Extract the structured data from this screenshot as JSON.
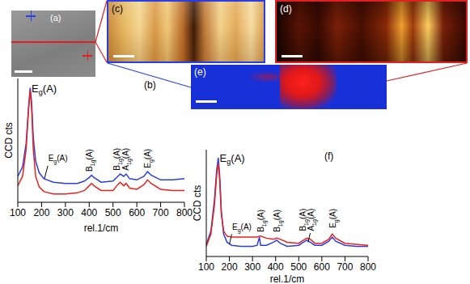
{
  "panels": {
    "a": "(a)",
    "c": "(c)",
    "d": "(d)",
    "e": "(e)"
  },
  "chart_data": [
    {
      "type": "line",
      "title": "(b)",
      "x_label": "rel.1/cm",
      "y_label": "CCD cts",
      "xlim": [
        100,
        800
      ],
      "xticks": [
        100,
        200,
        300,
        400,
        500,
        600,
        700,
        800
      ],
      "ylim": [
        0,
        105
      ],
      "tick_labels": "x",
      "x": [
        100,
        120,
        135,
        145,
        152,
        158,
        165,
        175,
        190,
        210,
        250,
        300,
        350,
        380,
        400,
        410,
        420,
        450,
        500,
        520,
        530,
        545,
        555,
        570,
        600,
        630,
        645,
        660,
        700,
        750,
        800
      ],
      "series": [
        {
          "color": "#2a3ee8",
          "values": [
            22,
            30,
            50,
            80,
            97,
            85,
            55,
            35,
            25,
            20,
            17,
            16,
            16,
            18,
            21,
            23,
            21,
            17,
            18,
            22,
            24,
            22,
            24,
            20,
            19,
            22,
            26,
            23,
            19,
            19,
            20
          ]
        },
        {
          "color": "#e8221c",
          "values": [
            14,
            22,
            45,
            78,
            95,
            80,
            45,
            22,
            13,
            9,
            7,
            7,
            8,
            10,
            14,
            16,
            14,
            10,
            10,
            15,
            17,
            14,
            16,
            12,
            11,
            15,
            19,
            16,
            11,
            10,
            10
          ]
        }
      ],
      "annotations": [
        {
          "text": "E",
          "sub": "g",
          "tail": "(A)",
          "x": 158,
          "y": 93
        },
        {
          "text": "E",
          "sub": "g",
          "tail": "(A)",
          "x": 228,
          "y": 35,
          "leader": [
            [
              212,
              20
            ],
            [
              226,
              31
            ]
          ]
        },
        {
          "text": "B",
          "sub": "1g",
          "tail": "(A)",
          "x": 400,
          "y": 26,
          "orientation": "vertical"
        },
        {
          "text": "B",
          "sub": "1g",
          "tail": "(A)",
          "x": 515,
          "y": 27,
          "orientation": "vertical"
        },
        {
          "text": "A",
          "sub": "1g",
          "tail": "(A)",
          "x": 553,
          "y": 27,
          "orientation": "vertical"
        },
        {
          "text": "E",
          "sub": "g",
          "tail": "(A)",
          "x": 645,
          "y": 29,
          "orientation": "vertical"
        }
      ]
    },
    {
      "type": "line",
      "title": "(f)",
      "x_label": "rel.1/cm",
      "y_label": "CCD cts",
      "xlim": [
        100,
        800
      ],
      "xticks": [
        100,
        200,
        300,
        400,
        500,
        600,
        700,
        800
      ],
      "ylim": [
        0,
        105
      ],
      "tick_labels": "x",
      "x": [
        100,
        120,
        135,
        145,
        152,
        158,
        165,
        175,
        190,
        210,
        250,
        300,
        320,
        330,
        335,
        360,
        390,
        405,
        420,
        450,
        500,
        520,
        535,
        550,
        570,
        600,
        630,
        645,
        660,
        700,
        750,
        800
      ],
      "series": [
        {
          "color": "#2a3ee8",
          "values": [
            12,
            25,
            55,
            85,
            97,
            80,
            45,
            22,
            14,
            11,
            10,
            10,
            11,
            19,
            11,
            11,
            14,
            16,
            13,
            10,
            11,
            14,
            16,
            14,
            11,
            11,
            15,
            19,
            15,
            11,
            10,
            10
          ]
        },
        {
          "color": "#e8221c",
          "values": [
            10,
            22,
            50,
            80,
            92,
            75,
            42,
            25,
            20,
            19,
            19,
            19,
            19,
            20,
            20,
            18,
            17,
            18,
            17,
            14,
            13,
            16,
            18,
            17,
            13,
            13,
            17,
            22,
            18,
            13,
            12,
            11
          ]
        }
      ],
      "annotations": [
        {
          "text": "E",
          "sub": "g",
          "tail": "(A)",
          "x": 158,
          "y": 93
        },
        {
          "text": "E",
          "sub": "g",
          "tail": "(A)",
          "x": 212,
          "y": 26,
          "leader": [
            [
              200,
              12
            ],
            [
              210,
              22
            ]
          ]
        },
        {
          "text": "B",
          "sub": "1g",
          "tail": "(A)",
          "x": 335,
          "y": 24,
          "orientation": "vertical"
        },
        {
          "text": "B",
          "sub": "1g",
          "tail": "(A)",
          "x": 405,
          "y": 24,
          "orientation": "vertical"
        },
        {
          "text": "B",
          "sub": "1g",
          "tail": "(A)",
          "x": 515,
          "y": 25,
          "orientation": "vertical"
        },
        {
          "text": "A",
          "sub": "1g",
          "tail": "(A)",
          "x": 553,
          "y": 25,
          "orientation": "vertical",
          "leader": [
            [
              540,
              14
            ],
            [
              550,
              23
            ]
          ]
        },
        {
          "text": "E",
          "sub": "g",
          "tail": "(A)",
          "x": 645,
          "y": 28,
          "orientation": "vertical"
        }
      ]
    }
  ]
}
